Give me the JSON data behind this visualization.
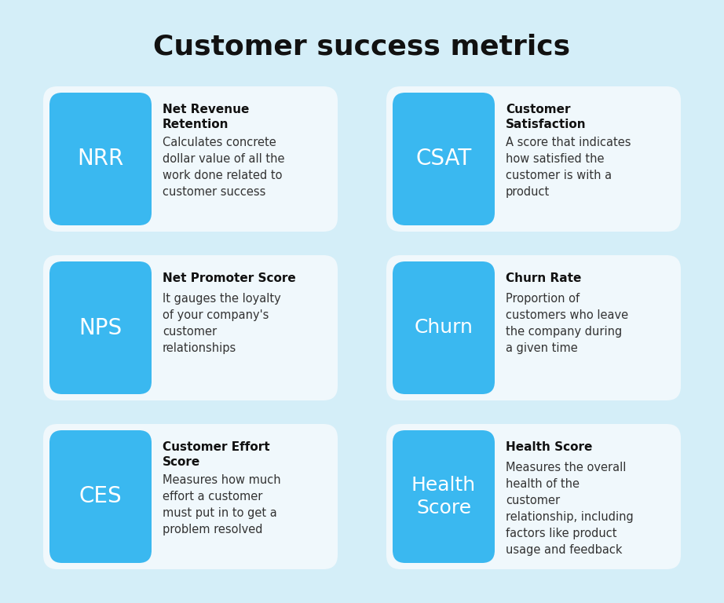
{
  "title": "Customer success metrics",
  "background_color": "#d4eef8",
  "card_bg_color": "#f0f8fc",
  "blue_box_color": "#3ab8f0",
  "title_color": "#111111",
  "abbr_text_color": "#ffffff",
  "heading_color": "#111111",
  "desc_color": "#333333",
  "fig_width": 9.22,
  "fig_height": 7.68,
  "dpi": 100,
  "cards": [
    {
      "abbr": "NRR",
      "heading": "Net Revenue\nRetention",
      "description": "Calculates concrete\ndollar value of all the\nwork done related to\ncustomer success",
      "row": 0,
      "col": 0
    },
    {
      "abbr": "CSAT",
      "heading": "Customer\nSatisfaction",
      "description": "A score that indicates\nhow satisfied the\ncustomer is with a\nproduct",
      "row": 0,
      "col": 1
    },
    {
      "abbr": "NPS",
      "heading": "Net Promoter Score",
      "description": "It gauges the loyalty\nof your company's\ncustomer\nrelationships",
      "row": 1,
      "col": 0
    },
    {
      "abbr": "Churn",
      "heading": "Churn Rate",
      "description": "Proportion of\ncustomers who leave\nthe company during\na given time",
      "row": 1,
      "col": 1
    },
    {
      "abbr": "CES",
      "heading": "Customer Effort\nScore",
      "description": "Measures how much\neffort a customer\nmust put in to get a\nproblem resolved",
      "row": 2,
      "col": 0
    },
    {
      "abbr": "Health\nScore",
      "heading": "Health Score",
      "description": "Measures the overall\nhealth of the\ncustomer\nrelationship, including\nfactors like product\nusage and feedback",
      "row": 2,
      "col": 1
    }
  ]
}
